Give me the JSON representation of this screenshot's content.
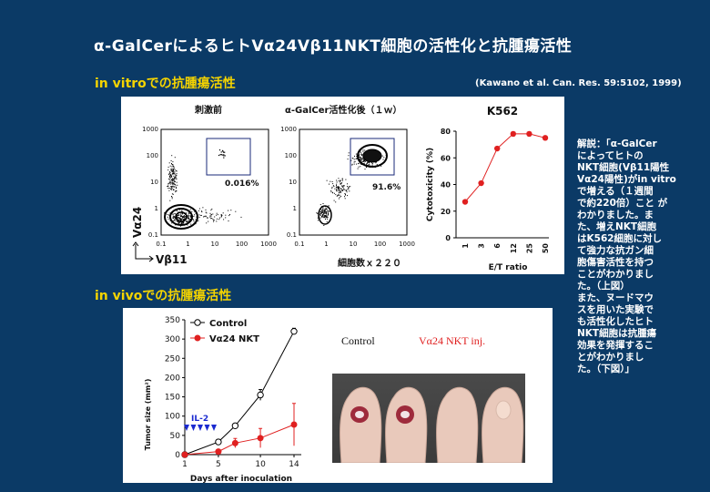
{
  "slide": {
    "title": "α-GalCerによるヒトVα24Vβ11NKT細胞の活性化と抗腫瘍活性",
    "section_vitro": "in vitroでの抗腫瘍活性",
    "section_vivo": "in vivoでの抗腫瘍活性",
    "reference": "(Kawano et al. Can. Res. 59:5102, 1999)",
    "note": "解説：「α-GalCer\nによってヒトの\nNKT細胞(Vβ11陽性\nVα24陽性)がin vitro\nで増える（１週間\nで約220倍）こと が\nわかりました。ま\nた、増えNKT細胞\nはK562細胞に対し\nて強力な抗ガン細\n胞傷害活性を持つ\nことがわかりまし\nた。（上図）\nまた、ヌードマウ\nスを用いた実験で\nも活性化したヒト\nNKT細胞は抗腫瘍\n効果を発揮するこ\nとがわかりまし\nた。（下図）」"
  },
  "flow": {
    "left_title": "刺激前",
    "right_title": "α-GalCer活性化後（１ｗ）",
    "left_pct": "0.016%",
    "right_pct": "91.6%",
    "y_label": "Vα24",
    "x_label": "Vβ11",
    "right_xlabel": "細胞数ｘ２２０",
    "ticks": [
      "0.1",
      "1",
      "10",
      "100",
      "1000"
    ]
  },
  "chart_data": [
    {
      "type": "line",
      "title": "K562",
      "xlabel": "E/T ratio",
      "ylabel": "Cytotoxicity (%)",
      "categories": [
        "1",
        "3",
        "6",
        "12",
        "25",
        "50"
      ],
      "ylim": [
        0,
        80
      ],
      "yticks": [
        "0",
        "20",
        "40",
        "60",
        "80"
      ],
      "series": [
        {
          "values": [
            27,
            41,
            67,
            78,
            78,
            75
          ]
        }
      ],
      "color": "#e02020"
    },
    {
      "type": "line",
      "xlabel": "Days after inoculation",
      "ylabel": "Tumor size (mm²)",
      "ylim": [
        0,
        350
      ],
      "yticks": [
        "0",
        "50",
        "100",
        "150",
        "200",
        "250",
        "300",
        "350"
      ],
      "xticks": [
        "1",
        "5",
        "10",
        "14"
      ],
      "annotation": "IL-2",
      "series": [
        {
          "name": "Control",
          "x": [
            1,
            5,
            7,
            10,
            14
          ],
          "y": [
            0,
            33,
            75,
            155,
            320
          ],
          "err": [
            0,
            4,
            5,
            14,
            8
          ],
          "color": "#000000"
        },
        {
          "name": "Vα24 NKT",
          "x": [
            1,
            5,
            7,
            10,
            14
          ],
          "y": [
            0,
            8,
            30,
            43,
            78
          ],
          "err": [
            0,
            3,
            12,
            25,
            55
          ],
          "color": "#e02020"
        }
      ]
    }
  ],
  "photo": {
    "label_control": "Control",
    "label_nkt": "Vα24 NKT inj."
  }
}
